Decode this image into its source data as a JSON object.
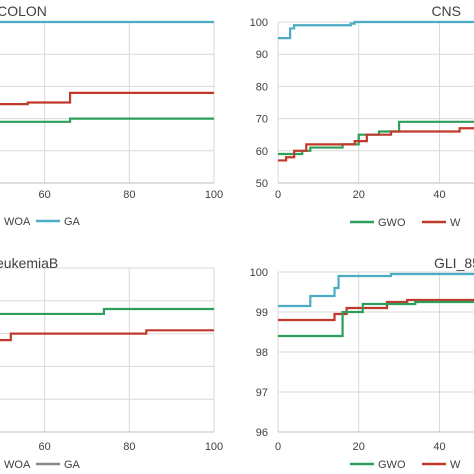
{
  "chart_data": [
    {
      "type": "line",
      "title": "COLON",
      "xlabel": "",
      "ylabel": "",
      "xlim": [
        40,
        100
      ],
      "ylim": [
        0,
        100
      ],
      "x_ticks": [
        60,
        80,
        100
      ],
      "y_ticks": [],
      "grid": true,
      "legend_position": "bottom",
      "legend_entries": [
        "WOA",
        "GA"
      ],
      "series": [
        {
          "name": "GA",
          "color": "#4bacc6",
          "step": true,
          "points": [
            [
              40,
              100
            ],
            [
              100,
              100
            ]
          ]
        },
        {
          "name": "WOA",
          "color": "#c0392b",
          "step": true,
          "points": [
            [
              40,
              48
            ],
            [
              43,
              49
            ],
            [
              56,
              50
            ],
            [
              60,
              50
            ],
            [
              66,
              56
            ],
            [
              100,
              56
            ]
          ]
        },
        {
          "name": "",
          "color": "#2e9e5b",
          "step": true,
          "points": [
            [
              40,
              38
            ],
            [
              66,
              38
            ],
            [
              66,
              40
            ],
            [
              100,
              40
            ]
          ]
        }
      ]
    },
    {
      "type": "line",
      "title": "CNS",
      "xlabel": "",
      "ylabel": "",
      "xlim": [
        0,
        55
      ],
      "ylim": [
        50,
        100
      ],
      "x_ticks": [
        0,
        20,
        40
      ],
      "y_ticks": [
        50,
        60,
        70,
        80,
        90,
        100
      ],
      "grid": true,
      "legend_position": "bottom",
      "legend_entries": [
        "GWO",
        "W"
      ],
      "series": [
        {
          "name": "",
          "color": "#4bacc6",
          "step": true,
          "points": [
            [
              0,
              95
            ],
            [
              2,
              95
            ],
            [
              3,
              98
            ],
            [
              4,
              99
            ],
            [
              15,
              99
            ],
            [
              18,
              99.5
            ],
            [
              19,
              100
            ],
            [
              55,
              100
            ]
          ]
        },
        {
          "name": "GWO",
          "color": "#2e9e5b",
          "step": true,
          "points": [
            [
              0,
              59
            ],
            [
              6,
              60
            ],
            [
              8,
              61
            ],
            [
              16,
              62
            ],
            [
              20,
              65
            ],
            [
              25,
              66
            ],
            [
              30,
              69
            ],
            [
              55,
              69
            ]
          ]
        },
        {
          "name": "W",
          "color": "#c0392b",
          "step": true,
          "points": [
            [
              0,
              57
            ],
            [
              2,
              58
            ],
            [
              4,
              60
            ],
            [
              7,
              62
            ],
            [
              19,
              63
            ],
            [
              22,
              65
            ],
            [
              28,
              66
            ],
            [
              45,
              67
            ],
            [
              50,
              68
            ],
            [
              53,
              69
            ],
            [
              55,
              69
            ]
          ]
        }
      ]
    },
    {
      "type": "line",
      "title": "eukemiaB",
      "xlabel": "",
      "ylabel": "",
      "xlim": [
        40,
        100
      ],
      "ylim": [
        0,
        100
      ],
      "x_ticks": [
        60,
        80,
        100
      ],
      "y_ticks": [],
      "grid": true,
      "legend_position": "bottom",
      "legend_entries": [
        "WOA",
        "GA"
      ],
      "series": [
        {
          "name": "",
          "color": "#2e9e5b",
          "step": true,
          "points": [
            [
              40,
              62
            ],
            [
              42,
              68
            ],
            [
              45,
              68
            ],
            [
              45,
              72
            ],
            [
              73,
              72
            ],
            [
              74,
              75
            ],
            [
              100,
              75
            ]
          ]
        },
        {
          "name": "WOA",
          "color": "#c0392b",
          "step": true,
          "points": [
            [
              40,
              56
            ],
            [
              52,
              56
            ],
            [
              52,
              60
            ],
            [
              83,
              60
            ],
            [
              84,
              62
            ],
            [
              100,
              62
            ]
          ]
        }
      ]
    },
    {
      "type": "line",
      "title": "GLI_85",
      "xlabel": "",
      "ylabel": "",
      "xlim": [
        0,
        55
      ],
      "ylim": [
        96,
        100
      ],
      "x_ticks": [
        0,
        20,
        40
      ],
      "y_ticks": [
        96,
        97,
        98,
        99,
        100
      ],
      "grid": true,
      "legend_position": "bottom",
      "legend_entries": [
        "GWO",
        "W"
      ],
      "series": [
        {
          "name": "",
          "color": "#4bacc6",
          "step": true,
          "points": [
            [
              0,
              99.15
            ],
            [
              7,
              99.15
            ],
            [
              8,
              99.4
            ],
            [
              13,
              99.4
            ],
            [
              14,
              99.6
            ],
            [
              15,
              99.9
            ],
            [
              27,
              99.9
            ],
            [
              28,
              99.95
            ],
            [
              55,
              99.95
            ]
          ]
        },
        {
          "name": "W",
          "color": "#c0392b",
          "step": true,
          "points": [
            [
              0,
              98.8
            ],
            [
              13,
              98.8
            ],
            [
              14,
              98.95
            ],
            [
              16,
              98.95
            ],
            [
              17,
              99.1
            ],
            [
              26,
              99.1
            ],
            [
              27,
              99.25
            ],
            [
              32,
              99.3
            ],
            [
              55,
              99.35
            ]
          ]
        },
        {
          "name": "GWO",
          "color": "#2e9e5b",
          "step": true,
          "points": [
            [
              0,
              98.4
            ],
            [
              15,
              98.4
            ],
            [
              16,
              99.0
            ],
            [
              20,
              99.0
            ],
            [
              21,
              99.2
            ],
            [
              33,
              99.2
            ],
            [
              34,
              99.25
            ],
            [
              55,
              99.3
            ]
          ]
        }
      ]
    }
  ]
}
